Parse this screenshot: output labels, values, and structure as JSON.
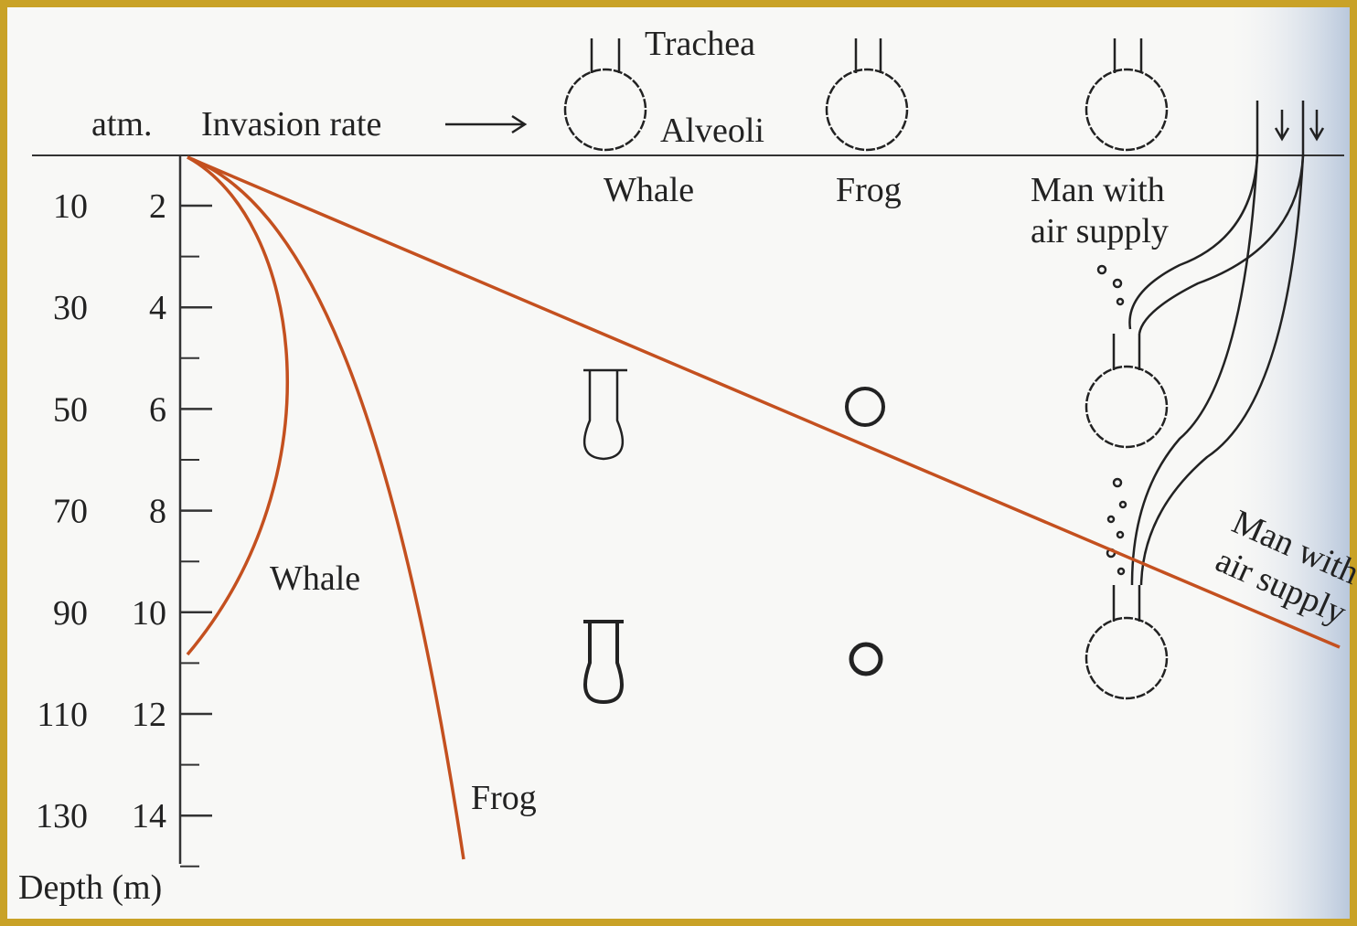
{
  "header": {
    "atm": "atm.",
    "invasion_rate": "Invasion rate",
    "trachea": "Trachea",
    "alveoli": "Alveoli"
  },
  "columns": [
    [
      "Whale"
    ],
    [
      "Frog"
    ],
    [
      "Man with",
      "air supply"
    ]
  ],
  "axis": {
    "depth_ticks": [
      10,
      30,
      50,
      70,
      90,
      110,
      130
    ],
    "atm_ticks": [
      2,
      4,
      6,
      8,
      10,
      12,
      14
    ],
    "label": "Depth (m)"
  },
  "curves": {
    "whale": "Whale",
    "frog": "Frog",
    "man": [
      "Man with",
      "air supply"
    ]
  }
}
